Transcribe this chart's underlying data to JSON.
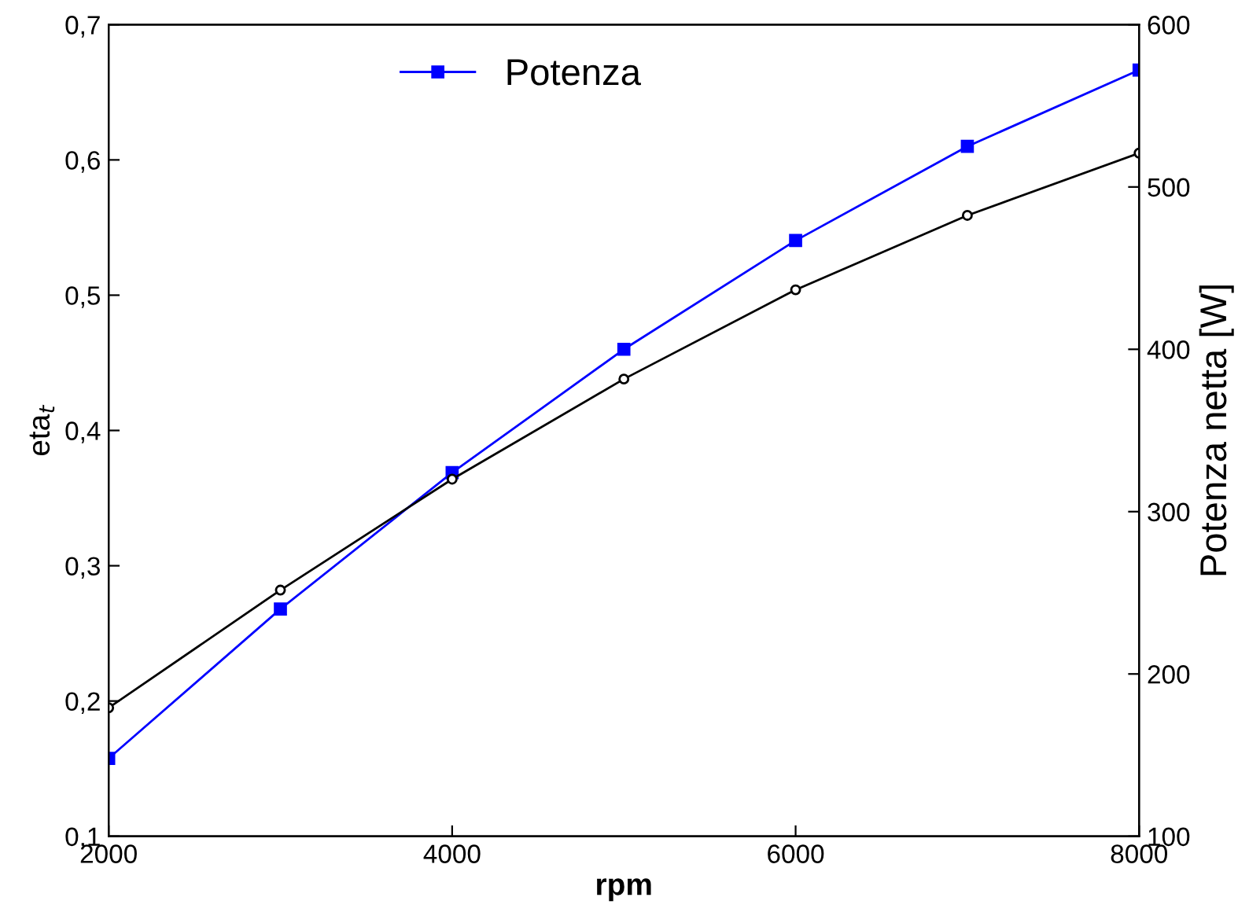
{
  "chart_data": {
    "type": "line",
    "xlabel": "rpm",
    "ylabel": "eta$_{t}$",
    "y2label": "Potenza netta [W]",
    "x": [
      2000,
      3000,
      4000,
      5000,
      6000,
      7000,
      8000
    ],
    "series": [
      {
        "color": "#000000",
        "marker": "circle",
        "values": [
          0.195,
          0.282,
          0.364,
          0.438,
          0.504,
          0.559,
          0.605
        ]
      },
      {
        "name": "Potenza",
        "color": "#0000ff",
        "marker": "square",
        "axis": "y2",
        "values": [
          148,
          240,
          324,
          400,
          467,
          525,
          572
        ]
      }
    ],
    "xlim": [
      2000,
      8000
    ],
    "xticks": [
      2000,
      4000,
      6000,
      8000
    ],
    "ylim": [
      0.1,
      0.7
    ],
    "yticks": [
      {
        "value": 0.1,
        "label": "0,1"
      },
      {
        "value": 0.2,
        "label": "0,2"
      },
      {
        "value": 0.3,
        "label": "0,3"
      },
      {
        "value": 0.4,
        "label": "0,4"
      },
      {
        "value": 0.5,
        "label": "0,5"
      },
      {
        "value": 0.6,
        "label": "0,6"
      },
      {
        "value": 0.7,
        "label": "0,7"
      }
    ],
    "y2lim": [
      100,
      600
    ],
    "y2ticks": [
      100,
      200,
      300,
      400,
      500,
      600
    ],
    "legend": "top",
    "grid": false
  }
}
